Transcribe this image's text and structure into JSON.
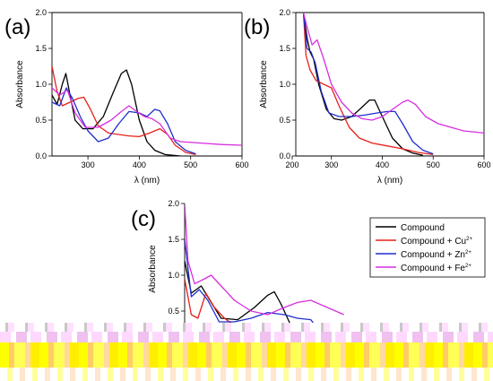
{
  "chart_data": {
    "type": "line",
    "legend": {
      "placement": "right-middle",
      "entries": [
        {
          "name": "Compound",
          "sup": "",
          "color": "#000000"
        },
        {
          "name": "Compound + Cu",
          "sup": "2+",
          "color": "#e8201a"
        },
        {
          "name": "Compound + Zn",
          "sup": "2+",
          "color": "#1f2ecc"
        },
        {
          "name": "Compound + Fe",
          "sup": "2+",
          "color": "#d82ee0"
        }
      ]
    },
    "panels": [
      {
        "label": "(a)",
        "xlabel": "λ (nm)",
        "ylabel": "Absorbance",
        "xlim": [
          230,
          600
        ],
        "ylim": [
          0,
          2.0
        ],
        "xticks": [
          "300",
          "400",
          "500",
          "600"
        ],
        "yticks": [
          "0.0",
          "0.5",
          "1.0",
          "1.5",
          "2.0"
        ],
        "series": [
          {
            "color": "#000000",
            "points": [
              [
                230,
                0.85
              ],
              [
                240,
                0.72
              ],
              [
                250,
                1.0
              ],
              [
                257,
                1.15
              ],
              [
                265,
                0.85
              ],
              [
                275,
                0.5
              ],
              [
                290,
                0.38
              ],
              [
                310,
                0.38
              ],
              [
                330,
                0.55
              ],
              [
                350,
                0.9
              ],
              [
                365,
                1.15
              ],
              [
                375,
                1.2
              ],
              [
                385,
                1.0
              ],
              [
                400,
                0.5
              ],
              [
                415,
                0.2
              ],
              [
                430,
                0.08
              ],
              [
                450,
                0.02
              ],
              [
                480,
                0.0
              ]
            ]
          },
          {
            "color": "#e8201a",
            "points": [
              [
                230,
                1.25
              ],
              [
                240,
                0.9
              ],
              [
                250,
                0.7
              ],
              [
                265,
                0.75
              ],
              [
                280,
                0.8
              ],
              [
                292,
                0.82
              ],
              [
                305,
                0.65
              ],
              [
                320,
                0.42
              ],
              [
                340,
                0.32
              ],
              [
                380,
                0.28
              ],
              [
                400,
                0.27
              ],
              [
                420,
                0.32
              ],
              [
                440,
                0.38
              ],
              [
                455,
                0.3
              ],
              [
                470,
                0.15
              ],
              [
                490,
                0.05
              ],
              [
                510,
                0.02
              ]
            ]
          },
          {
            "color": "#1f2ecc",
            "points": [
              [
                230,
                0.75
              ],
              [
                245,
                0.7
              ],
              [
                258,
                0.95
              ],
              [
                270,
                0.8
              ],
              [
                285,
                0.55
              ],
              [
                300,
                0.35
              ],
              [
                320,
                0.2
              ],
              [
                340,
                0.25
              ],
              [
                360,
                0.45
              ],
              [
                380,
                0.62
              ],
              [
                400,
                0.6
              ],
              [
                415,
                0.55
              ],
              [
                430,
                0.65
              ],
              [
                440,
                0.63
              ],
              [
                455,
                0.45
              ],
              [
                470,
                0.2
              ],
              [
                490,
                0.08
              ],
              [
                510,
                0.03
              ]
            ]
          },
          {
            "color": "#d82ee0",
            "points": [
              [
                230,
                0.95
              ],
              [
                245,
                0.85
              ],
              [
                260,
                0.92
              ],
              [
                275,
                0.6
              ],
              [
                295,
                0.4
              ],
              [
                320,
                0.4
              ],
              [
                345,
                0.5
              ],
              [
                365,
                0.62
              ],
              [
                380,
                0.7
              ],
              [
                395,
                0.62
              ],
              [
                410,
                0.55
              ],
              [
                425,
                0.52
              ],
              [
                440,
                0.45
              ],
              [
                460,
                0.25
              ],
              [
                480,
                0.2
              ],
              [
                520,
                0.18
              ],
              [
                560,
                0.16
              ],
              [
                600,
                0.15
              ]
            ]
          }
        ]
      },
      {
        "label": "(b)",
        "xlabel": "λ (nm)",
        "ylabel": "Absorbance",
        "xlim": [
          230,
          600
        ],
        "ylim": [
          0,
          2.0
        ],
        "xticks": [
          "200",
          "300",
          "400",
          "500",
          "600"
        ],
        "yticks": [
          "0.0",
          "0.5",
          "1.0",
          "1.5",
          "2.0"
        ],
        "series": [
          {
            "color": "#000000",
            "points": [
              [
                245,
                2.0
              ],
              [
                252,
                1.65
              ],
              [
                258,
                1.45
              ],
              [
                265,
                1.35
              ],
              [
                275,
                1.0
              ],
              [
                290,
                0.65
              ],
              [
                305,
                0.52
              ],
              [
                320,
                0.5
              ],
              [
                340,
                0.55
              ],
              [
                360,
                0.68
              ],
              [
                375,
                0.78
              ],
              [
                385,
                0.78
              ],
              [
                400,
                0.55
              ],
              [
                420,
                0.25
              ],
              [
                440,
                0.1
              ],
              [
                460,
                0.04
              ],
              [
                480,
                0.01
              ]
            ]
          },
          {
            "color": "#e8201a",
            "points": [
              [
                245,
                2.0
              ],
              [
                250,
                1.4
              ],
              [
                258,
                1.2
              ],
              [
                270,
                1.05
              ],
              [
                285,
                1.0
              ],
              [
                300,
                0.95
              ],
              [
                315,
                0.7
              ],
              [
                335,
                0.4
              ],
              [
                355,
                0.25
              ],
              [
                380,
                0.18
              ],
              [
                410,
                0.14
              ],
              [
                440,
                0.1
              ],
              [
                470,
                0.05
              ],
              [
                500,
                0.02
              ]
            ]
          },
          {
            "color": "#1f2ecc",
            "points": [
              [
                245,
                2.0
              ],
              [
                252,
                1.5
              ],
              [
                260,
                1.45
              ],
              [
                268,
                1.3
              ],
              [
                280,
                0.9
              ],
              [
                295,
                0.6
              ],
              [
                315,
                0.55
              ],
              [
                340,
                0.55
              ],
              [
                365,
                0.57
              ],
              [
                390,
                0.6
              ],
              [
                410,
                0.62
              ],
              [
                425,
                0.62
              ],
              [
                440,
                0.45
              ],
              [
                460,
                0.2
              ],
              [
                480,
                0.08
              ],
              [
                500,
                0.03
              ]
            ]
          },
          {
            "color": "#d82ee0",
            "points": [
              [
                245,
                2.0
              ],
              [
                252,
                1.8
              ],
              [
                262,
                1.55
              ],
              [
                272,
                1.62
              ],
              [
                285,
                1.35
              ],
              [
                300,
                1.0
              ],
              [
                320,
                0.75
              ],
              [
                340,
                0.6
              ],
              [
                360,
                0.52
              ],
              [
                380,
                0.5
              ],
              [
                400,
                0.55
              ],
              [
                420,
                0.65
              ],
              [
                440,
                0.75
              ],
              [
                450,
                0.78
              ],
              [
                465,
                0.72
              ],
              [
                485,
                0.55
              ],
              [
                510,
                0.45
              ],
              [
                560,
                0.35
              ],
              [
                600,
                0.32
              ]
            ]
          }
        ]
      },
      {
        "label": "(c)",
        "xlabel": "",
        "ylabel": "Absorbance",
        "xlim": [
          230,
          600
        ],
        "ylim": [
          0,
          2.0
        ],
        "xticks": [],
        "yticks": [
          "0.5",
          "1.0",
          "1.5",
          "2.0"
        ],
        "series": [
          {
            "color": "#000000",
            "points": [
              [
                230,
                1.2
              ],
              [
                240,
                0.75
              ],
              [
                255,
                0.85
              ],
              [
                270,
                0.62
              ],
              [
                285,
                0.4
              ],
              [
                310,
                0.38
              ],
              [
                335,
                0.55
              ],
              [
                355,
                0.72
              ],
              [
                365,
                0.77
              ],
              [
                375,
                0.6
              ],
              [
                390,
                0.3
              ]
            ]
          },
          {
            "color": "#e8201a",
            "points": [
              [
                230,
                0.95
              ],
              [
                240,
                0.45
              ],
              [
                250,
                0.4
              ],
              [
                262,
                0.75
              ],
              [
                275,
                0.55
              ],
              [
                290,
                0.4
              ],
              [
                305,
                0.3
              ]
            ]
          },
          {
            "color": "#1f2ecc",
            "points": [
              [
                230,
                1.5
              ],
              [
                240,
                0.7
              ],
              [
                252,
                0.8
              ],
              [
                265,
                0.65
              ],
              [
                282,
                0.35
              ],
              [
                305,
                0.35
              ],
              [
                330,
                0.4
              ],
              [
                355,
                0.48
              ],
              [
                380,
                0.45
              ],
              [
                400,
                0.4
              ],
              [
                420,
                0.38
              ],
              [
                435,
                0.2
              ]
            ]
          },
          {
            "color": "#d82ee0",
            "points": [
              [
                230,
                2.0
              ],
              [
                235,
                1.2
              ],
              [
                245,
                0.88
              ],
              [
                260,
                0.95
              ],
              [
                270,
                1.0
              ],
              [
                285,
                0.85
              ],
              [
                305,
                0.65
              ],
              [
                330,
                0.5
              ],
              [
                355,
                0.45
              ],
              [
                380,
                0.55
              ],
              [
                400,
                0.62
              ],
              [
                420,
                0.65
              ],
              [
                445,
                0.55
              ],
              [
                470,
                0.45
              ]
            ]
          }
        ]
      }
    ]
  }
}
